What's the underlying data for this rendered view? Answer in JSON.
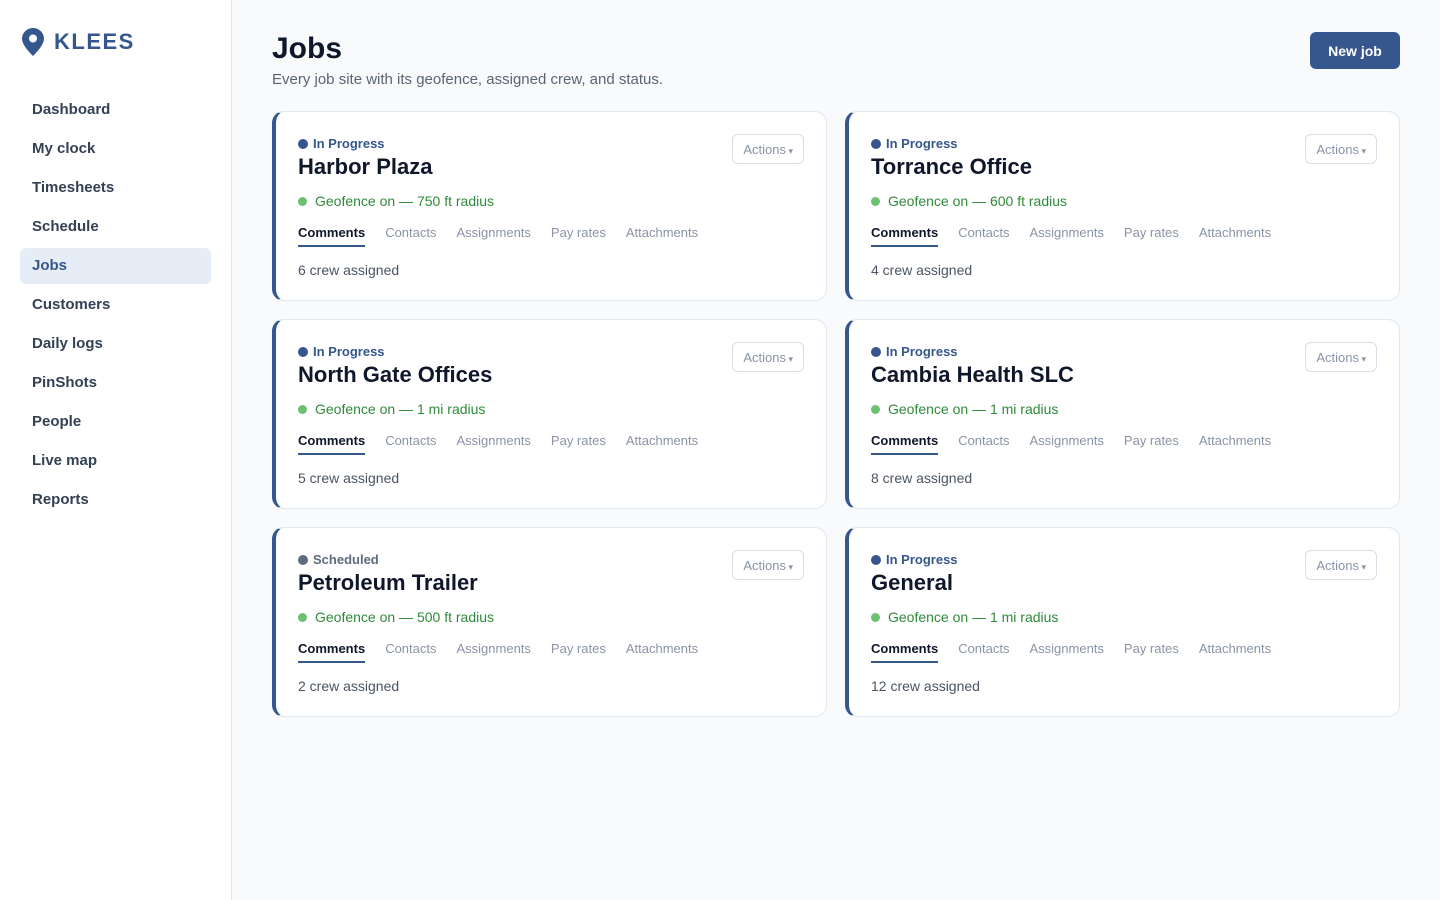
{
  "sidebar": {
    "brand": "KLEES",
    "nav": [
      "Dashboard",
      "My clock",
      "Timesheets",
      "Schedule",
      "Jobs",
      "Customers",
      "Daily logs",
      "PinShots",
      "People",
      "Live map",
      "Reports"
    ],
    "active": 4
  },
  "header": {
    "title": "Jobs",
    "subtitle": "Every job site with its geofence, assigned crew, and status.",
    "button": "New job"
  },
  "actions_label": "Actions",
  "card_tabs": [
    "Comments",
    "Contacts",
    "Assignments",
    "Pay rates",
    "Attachments"
  ],
  "active_tab": 0,
  "jobs": [
    {
      "status": "In Progress",
      "status_color": "#35578e",
      "name": "Harbor Plaza",
      "geofence": "Geofence on — 750 ft radius",
      "crew": "6 crew assigned"
    },
    {
      "status": "In Progress",
      "status_color": "#35578e",
      "name": "Torrance Office",
      "geofence": "Geofence on — 600 ft radius",
      "crew": "4 crew assigned"
    },
    {
      "status": "In Progress",
      "status_color": "#35578e",
      "name": "North Gate Offices",
      "geofence": "Geofence on — 1 mi radius",
      "crew": "5 crew assigned"
    },
    {
      "status": "In Progress",
      "status_color": "#35578e",
      "name": "Cambia Health SLC",
      "geofence": "Geofence on — 1 mi radius",
      "crew": "8 crew assigned"
    },
    {
      "status": "Scheduled",
      "status_color": "#5d6b7e",
      "name": "Petroleum Trailer",
      "geofence": "Geofence on — 500 ft radius",
      "crew": "2 crew assigned"
    },
    {
      "status": "In Progress",
      "status_color": "#35578e",
      "name": "General",
      "geofence": "Geofence on — 1 mi radius",
      "crew": "12 crew assigned"
    }
  ]
}
